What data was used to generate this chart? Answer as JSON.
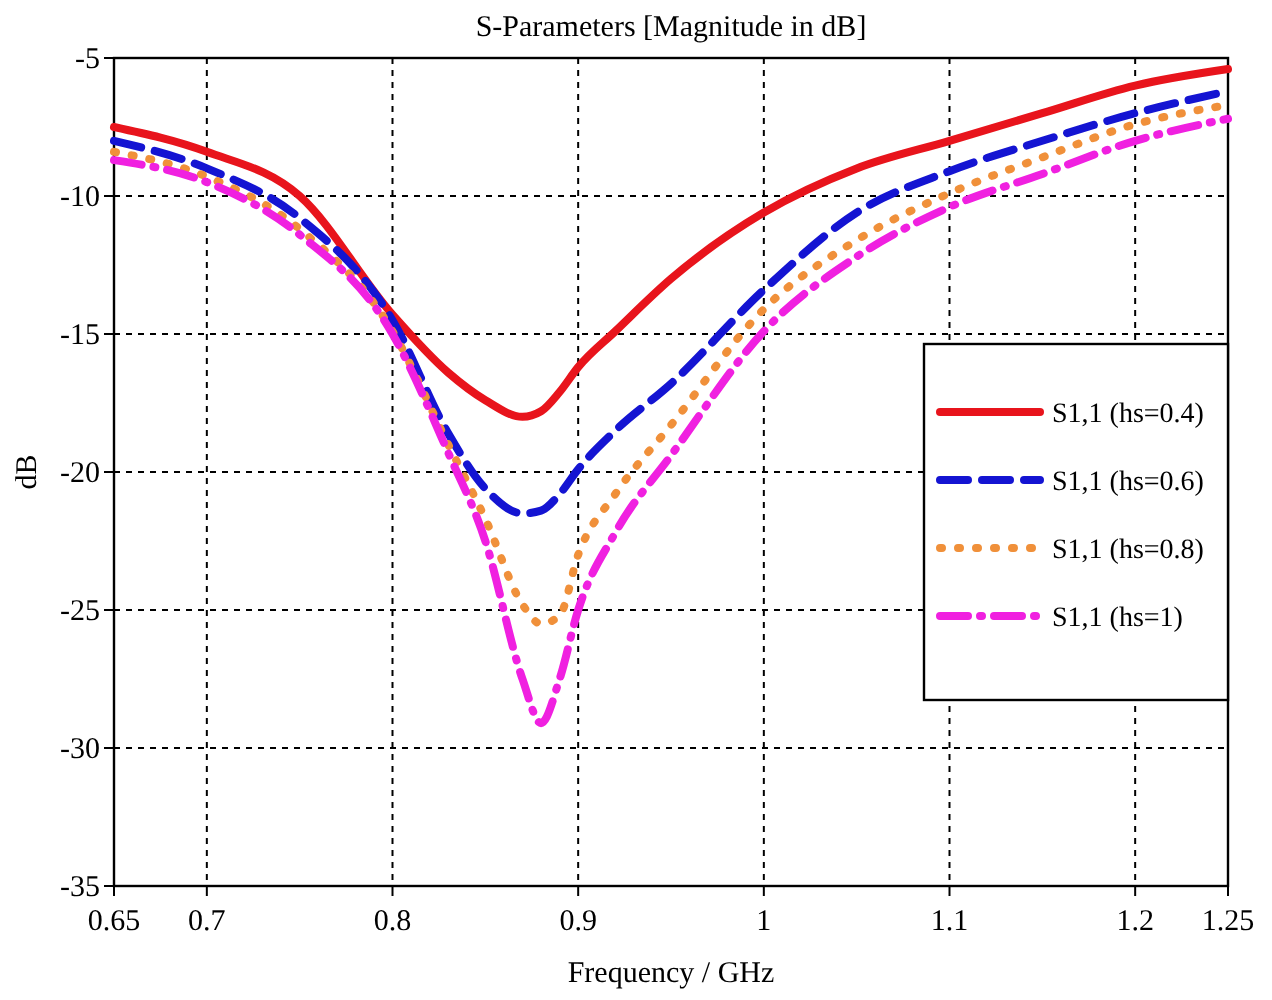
{
  "chart_data": {
    "type": "line",
    "title": "S-Parameters [Magnitude in dB]",
    "xlabel": "Frequency / GHz",
    "ylabel": "dB",
    "xlim": [
      0.65,
      1.25
    ],
    "xticks": [
      0.65,
      0.7,
      0.8,
      0.9,
      1,
      1.1,
      1.2,
      1.25
    ],
    "ylim": [
      -35,
      -5
    ],
    "yticks": [
      -35,
      -30,
      -25,
      -20,
      -15,
      -10,
      -5
    ],
    "grid": true,
    "legend": "right",
    "marker": "none",
    "x": [
      0.65,
      0.7,
      0.75,
      0.8,
      0.83,
      0.85,
      0.87,
      0.88,
      0.89,
      0.9,
      0.92,
      0.95,
      1,
      1.05,
      1.1,
      1.15,
      1.2,
      1.25
    ],
    "series": [
      {
        "name": "S1,1 (hs=0.4)",
        "color": "#e8141c",
        "line_style": "solid",
        "values": [
          -7.5,
          -8.4,
          -10,
          -14.3,
          -16.4,
          -17.4,
          -18,
          -17.8,
          -17.1,
          -16.2,
          -14.9,
          -13,
          -10.6,
          -9,
          -8,
          -7,
          -6,
          -5.4
        ]
      },
      {
        "name": "S1,1 (hs=0.6)",
        "color": "#1414d2",
        "line_style": "dashed",
        "values": [
          -8,
          -9,
          -10.8,
          -14.5,
          -18.6,
          -20.6,
          -21.5,
          -21.4,
          -20.8,
          -19.9,
          -18.5,
          -16.8,
          -13.4,
          -10.6,
          -9.1,
          -8,
          -7,
          -6.2
        ]
      },
      {
        "name": "S1,1 (hs=0.8)",
        "color": "#f0903a",
        "line_style": "dotted",
        "values": [
          -8.4,
          -9.3,
          -11.2,
          -14.9,
          -19,
          -21.7,
          -24.8,
          -25.5,
          -25.2,
          -23,
          -20.8,
          -18.3,
          -14.1,
          -11.6,
          -9.9,
          -8.6,
          -7.4,
          -6.7
        ]
      },
      {
        "name": "S1,1 (hs=1)",
        "color": "#f020e0",
        "line_style": "dashdot",
        "values": [
          -8.7,
          -9.5,
          -11.4,
          -15,
          -19.3,
          -22.5,
          -27.5,
          -29.1,
          -27.5,
          -25,
          -22.2,
          -19.4,
          -14.9,
          -12.2,
          -10.4,
          -9.2,
          -8,
          -7.2
        ]
      }
    ]
  }
}
